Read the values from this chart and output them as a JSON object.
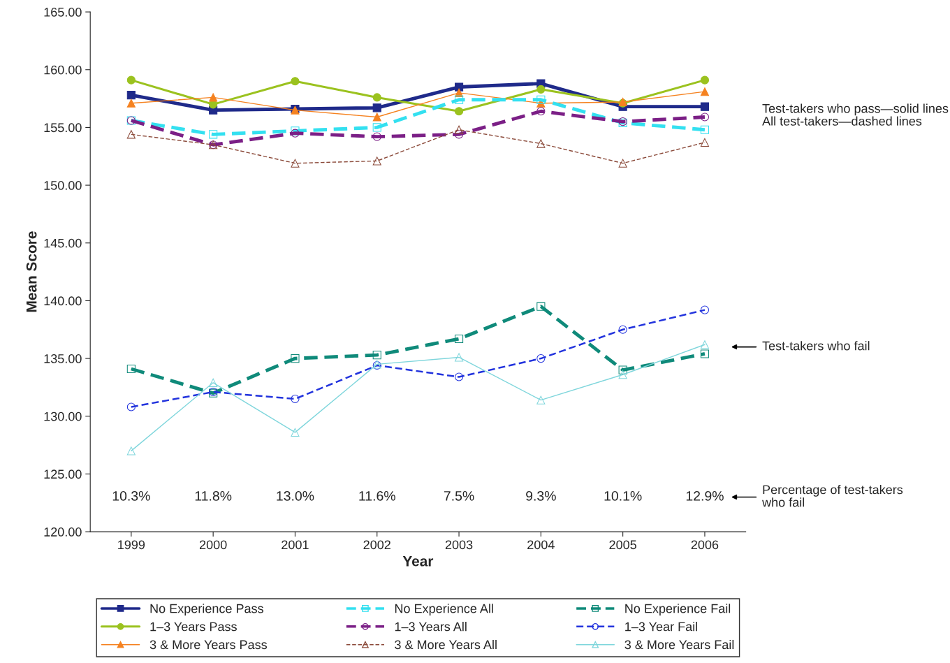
{
  "chart_data": {
    "type": "line",
    "xlabel": "Year",
    "ylabel": "Mean Score",
    "categories": [
      "1999",
      "2000",
      "2001",
      "2002",
      "2003",
      "2004",
      "2005",
      "2006"
    ],
    "series": [
      {
        "name": "No Experience Pass",
        "color": "#1f2a8a",
        "line_style": "solid",
        "marker": "square",
        "values": [
          157.8,
          156.5,
          156.6,
          156.7,
          158.5,
          158.8,
          156.8,
          156.8
        ]
      },
      {
        "name": "1–3 Years Pass",
        "color": "#9bc21f",
        "line_style": "solid",
        "marker": "circle",
        "values": [
          159.1,
          157.0,
          159.0,
          157.6,
          156.4,
          158.3,
          157.1,
          159.1
        ]
      },
      {
        "name": "3 & More Years Pass",
        "color": "#f58220",
        "line_style": "solid",
        "marker": "triangle",
        "values": [
          157.1,
          157.6,
          156.5,
          155.9,
          158.0,
          157.1,
          157.2,
          158.1
        ]
      },
      {
        "name": "No Experience All",
        "color": "#33e0f0",
        "line_style": "dashed",
        "marker": "square",
        "values": [
          155.6,
          154.4,
          154.7,
          155.0,
          157.4,
          157.4,
          155.4,
          154.8
        ]
      },
      {
        "name": "1–3 Years All",
        "color": "#7b1f86",
        "line_style": "dashed",
        "marker": "circle",
        "values": [
          155.6,
          153.5,
          154.5,
          154.2,
          154.4,
          156.4,
          155.5,
          155.9
        ]
      },
      {
        "name": "3 & More Years All",
        "color": "#8b4a3a",
        "line_style": "dashed",
        "marker": "triangle",
        "values": [
          154.4,
          153.5,
          151.9,
          152.1,
          154.8,
          153.6,
          151.9,
          153.7
        ]
      },
      {
        "name": "No Experience Fail",
        "color": "#0f8a7a",
        "line_style": "dashed",
        "marker": "square",
        "values": [
          134.1,
          132.0,
          135.0,
          135.3,
          136.7,
          139.5,
          134.0,
          135.4
        ]
      },
      {
        "name": "1–3 Year Fail",
        "color": "#2233dd",
        "line_style": "dashed",
        "marker": "circle",
        "values": [
          130.8,
          132.1,
          131.5,
          134.4,
          133.4,
          135.0,
          137.5,
          139.2
        ]
      },
      {
        "name": "3 & More Years Fail",
        "color": "#7fd6dc",
        "line_style": "solid",
        "marker": "triangle",
        "values": [
          127.0,
          132.9,
          128.6,
          134.5,
          135.1,
          131.4,
          133.6,
          136.2
        ]
      }
    ],
    "ylim": [
      120,
      165
    ],
    "yticks": [
      {
        "value": 120,
        "label": "120.00"
      },
      {
        "value": 125,
        "label": "125.00"
      },
      {
        "value": 130,
        "label": "130.00"
      },
      {
        "value": 135,
        "label": "135.00"
      },
      {
        "value": 140,
        "label": "140.00"
      },
      {
        "value": 145,
        "label": "145.00"
      },
      {
        "value": 150,
        "label": "150.00"
      },
      {
        "value": 155,
        "label": "155.00"
      },
      {
        "value": 160,
        "label": "160.00"
      },
      {
        "value": 165,
        "label": "165.00"
      }
    ],
    "grid": false,
    "legend": "bottom",
    "annotations": [
      "10.3%",
      "11.8%",
      "13.0%",
      "11.6%",
      "7.5%",
      "9.3%",
      "10.1%",
      "12.9%",
      "Test-takers who pass—solid lines\nAll test-takers—dashed lines",
      "Test-takers who fail",
      "Percentage of test-takers\nwho fail"
    ]
  }
}
